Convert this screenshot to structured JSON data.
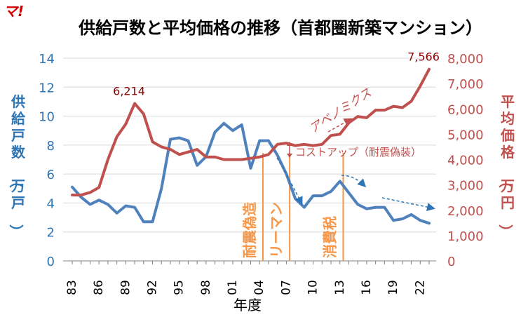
{
  "logo_text": "マ!",
  "chart_data": {
    "type": "line",
    "title": "供給戸数と平均価格の推移（首都圏新築マンション）",
    "xlabel": "年度",
    "ylabel_left": "供給戸数（万戸）",
    "ylabel_right": "平均価格（万円）",
    "x": [
      1983,
      1984,
      1985,
      1986,
      1987,
      1988,
      1989,
      1990,
      1991,
      1992,
      1993,
      1994,
      1995,
      1996,
      1997,
      1998,
      1999,
      2000,
      2001,
      2002,
      2003,
      2004,
      2005,
      2006,
      2007,
      2008,
      2009,
      2010,
      2011,
      2012,
      2013,
      2014,
      2015,
      2016,
      2017,
      2018,
      2019,
      2020,
      2021,
      2022,
      2023
    ],
    "x_tick_labels": [
      "83",
      "86",
      "89",
      "92",
      "95",
      "98",
      "01",
      "04",
      "07",
      "10",
      "13",
      "16",
      "19",
      "22"
    ],
    "x_tick_years": [
      1983,
      1986,
      1989,
      1992,
      1995,
      1998,
      2001,
      2004,
      2007,
      2010,
      2013,
      2016,
      2019,
      2022
    ],
    "ylim_left": [
      0,
      14
    ],
    "yticks_left": [
      "0",
      "2",
      "4",
      "6",
      "8",
      "10",
      "12",
      "14"
    ],
    "ylim_right": [
      0,
      8000
    ],
    "yticks_right": [
      "0",
      "1,000",
      "2,000",
      "3,000",
      "4,000",
      "5,000",
      "6,000",
      "7,000",
      "8,000"
    ],
    "grid": true,
    "series": [
      {
        "axis": "left",
        "color": "#4f81bd",
        "values": [
          5.1,
          4.4,
          3.9,
          4.2,
          3.9,
          3.3,
          3.8,
          3.7,
          2.7,
          2.7,
          5.0,
          8.4,
          8.5,
          8.3,
          6.6,
          7.2,
          8.9,
          9.5,
          9.0,
          9.4,
          6.4,
          8.3,
          8.3,
          7.3,
          6.0,
          4.3,
          3.7,
          4.5,
          4.5,
          4.8,
          5.5,
          4.7,
          3.9,
          3.6,
          3.7,
          3.7,
          2.8,
          2.9,
          3.2,
          2.8,
          2.6
        ]
      },
      {
        "axis": "right",
        "color": "#c0504d",
        "values": [
          2600,
          2600,
          2700,
          2900,
          4000,
          4900,
          5400,
          6214,
          5800,
          4700,
          4500,
          4400,
          4200,
          4300,
          4400,
          4100,
          4100,
          4000,
          4000,
          4000,
          4050,
          4100,
          4200,
          4600,
          4650,
          4550,
          4600,
          4550,
          4600,
          4950,
          5000,
          5450,
          5700,
          5650,
          5950,
          5950,
          6100,
          6050,
          6300,
          6900,
          7566
        ]
      }
    ],
    "data_labels": [
      {
        "series": 1,
        "year": 1990,
        "text": "6,214"
      },
      {
        "series": 1,
        "year": 2023,
        "text": "7,566"
      }
    ],
    "events": [
      {
        "year": 2005,
        "label": "耐震偽造"
      },
      {
        "year": 2008,
        "label": "リーマン"
      },
      {
        "year": 2014,
        "label": "消費税"
      }
    ],
    "annotations": [
      {
        "text": "コストアップ（耐震偽装）"
      },
      {
        "text": "アベノミクス"
      }
    ]
  }
}
